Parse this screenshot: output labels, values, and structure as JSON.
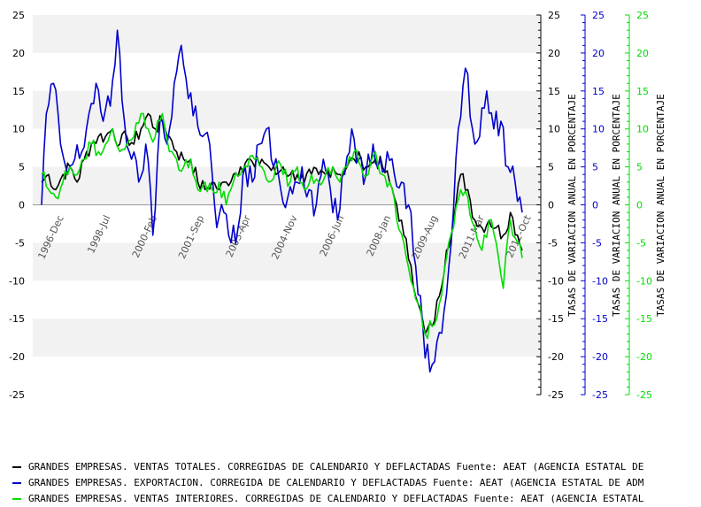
{
  "chart_data": {
    "type": "line",
    "ylim": [
      -25,
      25
    ],
    "y_ticks": [
      25,
      20,
      15,
      10,
      5,
      0,
      -5,
      -10,
      -15,
      -20,
      -25
    ],
    "x_tick_labels": [
      "1996-Dec",
      "1998-Jul",
      "2000-Feb",
      "2001-Sep",
      "2003-Apr",
      "2004-Nov",
      "2006-Jun",
      "2008-Jan",
      "2009-Aug",
      "2011-Mar",
      "2012-Oct"
    ],
    "x_range": [
      "1996-Jan",
      "2012-Dec"
    ],
    "grid": "horizontal bands",
    "axis_titles": {
      "right_black": "TASAS DE VARIACION ANUAL EN PORCENTAJE",
      "right_blue": "TASAS DE VARIACION ANUAL EN PORCENTAJE",
      "right_green": "TASAS DE VARIACION ANUAL EN PORCENTAJE"
    },
    "series": [
      {
        "name": "GRANDES EMPRESAS. VENTAS TOTALES. CORREGIDAS DE CALENDARIO Y DEFLACTADAS  Fuente: AEAT (AGENCIA ESTATAL DE",
        "color": "#000000",
        "anchors": [
          [
            "1996-01",
            3
          ],
          [
            "1996-04",
            4
          ],
          [
            "1996-07",
            2
          ],
          [
            "1996-10",
            4
          ],
          [
            "1997-01",
            5
          ],
          [
            "1997-04",
            3
          ],
          [
            "1997-07",
            6
          ],
          [
            "1997-10",
            8
          ],
          [
            "1998-01",
            9
          ],
          [
            "1998-04",
            9
          ],
          [
            "1998-07",
            10
          ],
          [
            "1998-10",
            8
          ],
          [
            "1999-01",
            9
          ],
          [
            "1999-04",
            8
          ],
          [
            "1999-07",
            10
          ],
          [
            "1999-10",
            12
          ],
          [
            "2000-01",
            10
          ],
          [
            "2000-04",
            11
          ],
          [
            "2000-07",
            9
          ],
          [
            "2000-10",
            7
          ],
          [
            "2001-01",
            6
          ],
          [
            "2001-04",
            6
          ],
          [
            "2001-07",
            3
          ],
          [
            "2001-10",
            2
          ],
          [
            "2002-01",
            3
          ],
          [
            "2002-04",
            2
          ],
          [
            "2002-07",
            3
          ],
          [
            "2002-10",
            4
          ],
          [
            "2003-01",
            5
          ],
          [
            "2003-04",
            6
          ],
          [
            "2003-07",
            5
          ],
          [
            "2003-10",
            6
          ],
          [
            "2004-01",
            5
          ],
          [
            "2004-04",
            4
          ],
          [
            "2004-07",
            5
          ],
          [
            "2004-10",
            4
          ],
          [
            "2005-01",
            4
          ],
          [
            "2005-04",
            3
          ],
          [
            "2005-07",
            4
          ],
          [
            "2005-10",
            4
          ],
          [
            "2006-01",
            4
          ],
          [
            "2006-04",
            5
          ],
          [
            "2006-07",
            4
          ],
          [
            "2006-10",
            5
          ],
          [
            "2007-01",
            6
          ],
          [
            "2007-04",
            6
          ],
          [
            "2007-07",
            5
          ],
          [
            "2007-10",
            6
          ],
          [
            "2008-01",
            5
          ],
          [
            "2008-04",
            3
          ],
          [
            "2008-07",
            0
          ],
          [
            "2008-10",
            -4
          ],
          [
            "2009-01",
            -8
          ],
          [
            "2009-04",
            -13
          ],
          [
            "2009-07",
            -17
          ],
          [
            "2009-10",
            -16
          ],
          [
            "2010-01",
            -12
          ],
          [
            "2010-04",
            -6
          ],
          [
            "2010-07",
            -2
          ],
          [
            "2010-10",
            4
          ],
          [
            "2011-01",
            2
          ],
          [
            "2011-04",
            -2
          ],
          [
            "2011-07",
            -3
          ],
          [
            "2011-10",
            -2
          ],
          [
            "2012-01",
            -3
          ],
          [
            "2012-04",
            -4
          ],
          [
            "2012-07",
            -1
          ],
          [
            "2012-10",
            -4
          ],
          [
            "2012-12",
            -6
          ]
        ]
      },
      {
        "name": "GRANDES EMPRESAS. EXPORTACION. CORREGIDA DE CALENDARIO Y DEFLACTADAS  Fuente: AEAT (AGENCIA ESTATAL DE ADM",
        "color": "#0000cc",
        "anchors": [
          [
            "1996-01",
            0
          ],
          [
            "1996-03",
            12
          ],
          [
            "1996-06",
            16
          ],
          [
            "1996-09",
            8
          ],
          [
            "1996-12",
            4
          ],
          [
            "1997-03",
            6
          ],
          [
            "1997-06",
            7
          ],
          [
            "1997-09",
            12
          ],
          [
            "1997-12",
            16
          ],
          [
            "1998-03",
            11
          ],
          [
            "1998-06",
            13
          ],
          [
            "1998-09",
            23
          ],
          [
            "1998-12",
            11
          ],
          [
            "1999-03",
            6
          ],
          [
            "1999-06",
            3
          ],
          [
            "1999-09",
            8
          ],
          [
            "1999-12",
            -4
          ],
          [
            "2000-03",
            11
          ],
          [
            "2000-06",
            8
          ],
          [
            "2000-09",
            16
          ],
          [
            "2000-12",
            21
          ],
          [
            "2001-03",
            14
          ],
          [
            "2001-06",
            13
          ],
          [
            "2001-09",
            9
          ],
          [
            "2001-12",
            8
          ],
          [
            "2002-03",
            -3
          ],
          [
            "2002-06",
            -1
          ],
          [
            "2002-09",
            -5
          ],
          [
            "2002-12",
            -3
          ],
          [
            "2003-03",
            5
          ],
          [
            "2003-06",
            3
          ],
          [
            "2003-09",
            8
          ],
          [
            "2003-12",
            10
          ],
          [
            "2004-03",
            5
          ],
          [
            "2004-06",
            2
          ],
          [
            "2004-09",
            1
          ],
          [
            "2004-12",
            3
          ],
          [
            "2005-03",
            5
          ],
          [
            "2005-06",
            2
          ],
          [
            "2005-09",
            0
          ],
          [
            "2005-12",
            6
          ],
          [
            "2006-03",
            2
          ],
          [
            "2006-06",
            -2
          ],
          [
            "2006-09",
            4
          ],
          [
            "2006-12",
            10
          ],
          [
            "2007-03",
            6
          ],
          [
            "2007-06",
            4
          ],
          [
            "2007-09",
            8
          ],
          [
            "2007-12",
            6
          ],
          [
            "2008-03",
            7
          ],
          [
            "2008-06",
            4
          ],
          [
            "2008-09",
            3
          ],
          [
            "2008-12",
            0
          ],
          [
            "2009-03",
            -8
          ],
          [
            "2009-06",
            -16
          ],
          [
            "2009-09",
            -22
          ],
          [
            "2009-12",
            -18
          ],
          [
            "2010-03",
            -14
          ],
          [
            "2010-06",
            -5
          ],
          [
            "2010-09",
            10
          ],
          [
            "2010-12",
            18
          ],
          [
            "2011-03",
            10
          ],
          [
            "2011-06",
            9
          ],
          [
            "2011-09",
            15
          ],
          [
            "2011-12",
            10
          ],
          [
            "2012-03",
            11
          ],
          [
            "2012-06",
            5
          ],
          [
            "2012-09",
            3
          ],
          [
            "2012-12",
            -1
          ]
        ]
      },
      {
        "name": "GRANDES EMPRESAS. VENTAS INTERIORES. CORREGIDAS DE CALENDARIO Y DEFLACTADAS  Fuente: AEAT (AGENCIA ESTATAL",
        "color": "#00dd00",
        "anchors": [
          [
            "1996-01",
            4
          ],
          [
            "1996-04",
            2
          ],
          [
            "1996-07",
            1
          ],
          [
            "1996-10",
            3
          ],
          [
            "1997-01",
            5
          ],
          [
            "1997-04",
            4
          ],
          [
            "1997-07",
            6
          ],
          [
            "1997-10",
            8
          ],
          [
            "1998-01",
            7
          ],
          [
            "1998-04",
            8
          ],
          [
            "1998-07",
            10
          ],
          [
            "1998-10",
            7
          ],
          [
            "1999-01",
            8
          ],
          [
            "1999-04",
            9
          ],
          [
            "1999-07",
            12
          ],
          [
            "1999-10",
            10
          ],
          [
            "2000-01",
            9
          ],
          [
            "2000-04",
            12
          ],
          [
            "2000-07",
            7
          ],
          [
            "2000-10",
            6
          ],
          [
            "2001-01",
            5
          ],
          [
            "2001-04",
            6
          ],
          [
            "2001-07",
            2
          ],
          [
            "2001-10",
            3
          ],
          [
            "2002-01",
            2
          ],
          [
            "2002-04",
            3
          ],
          [
            "2002-07",
            0
          ],
          [
            "2002-10",
            3
          ],
          [
            "2003-01",
            4
          ],
          [
            "2003-04",
            5
          ],
          [
            "2003-07",
            6
          ],
          [
            "2003-10",
            5
          ],
          [
            "2004-01",
            3
          ],
          [
            "2004-04",
            5
          ],
          [
            "2004-07",
            4
          ],
          [
            "2004-10",
            3
          ],
          [
            "2005-01",
            5
          ],
          [
            "2005-04",
            2
          ],
          [
            "2005-07",
            4
          ],
          [
            "2005-10",
            3
          ],
          [
            "2006-01",
            4
          ],
          [
            "2006-04",
            5
          ],
          [
            "2006-07",
            3
          ],
          [
            "2006-10",
            5
          ],
          [
            "2007-01",
            7
          ],
          [
            "2007-04",
            5
          ],
          [
            "2007-07",
            4
          ],
          [
            "2007-10",
            7
          ],
          [
            "2008-01",
            4
          ],
          [
            "2008-04",
            3
          ],
          [
            "2008-07",
            -2
          ],
          [
            "2008-10",
            -5
          ],
          [
            "2009-01",
            -10
          ],
          [
            "2009-04",
            -13
          ],
          [
            "2009-07",
            -17
          ],
          [
            "2009-10",
            -16
          ],
          [
            "2010-01",
            -13
          ],
          [
            "2010-04",
            -7
          ],
          [
            "2010-07",
            -3
          ],
          [
            "2010-10",
            2
          ],
          [
            "2011-01",
            1
          ],
          [
            "2011-04",
            -3
          ],
          [
            "2011-07",
            -6
          ],
          [
            "2011-10",
            -2
          ],
          [
            "2012-01",
            -5
          ],
          [
            "2012-04",
            -11
          ],
          [
            "2012-07",
            -2
          ],
          [
            "2012-10",
            -5
          ],
          [
            "2012-12",
            -7
          ]
        ]
      }
    ]
  },
  "legend": {
    "items": [
      {
        "label": "GRANDES EMPRESAS. VENTAS TOTALES. CORREGIDAS DE CALENDARIO Y DEFLACTADAS  Fuente: AEAT (AGENCIA ESTATAL DE",
        "color": "#000000"
      },
      {
        "label": "GRANDES EMPRESAS. EXPORTACION. CORREGIDA DE CALENDARIO Y DEFLACTADAS  Fuente: AEAT (AGENCIA ESTATAL DE ADM",
        "color": "#0000cc"
      },
      {
        "label": "GRANDES EMPRESAS. VENTAS INTERIORES. CORREGIDAS DE CALENDARIO Y DEFLACTADAS  Fuente: AEAT (AGENCIA ESTATAL",
        "color": "#00dd00"
      }
    ]
  }
}
